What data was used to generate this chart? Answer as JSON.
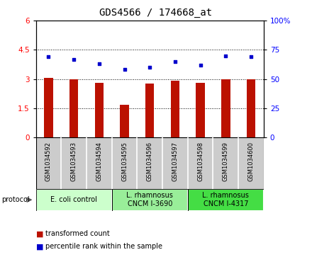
{
  "title": "GDS4566 / 174668_at",
  "samples": [
    "GSM1034592",
    "GSM1034593",
    "GSM1034594",
    "GSM1034595",
    "GSM1034596",
    "GSM1034597",
    "GSM1034598",
    "GSM1034599",
    "GSM1034600"
  ],
  "transformed_counts": [
    3.05,
    3.0,
    2.82,
    1.68,
    2.78,
    2.93,
    2.82,
    3.0,
    3.0
  ],
  "percentile_ranks": [
    69,
    67,
    63,
    58,
    60,
    65,
    62,
    70,
    69
  ],
  "left_ylim": [
    0,
    6
  ],
  "left_yticks": [
    0,
    1.5,
    3.0,
    4.5,
    6.0
  ],
  "left_yticklabels": [
    "0",
    "1.5",
    "3",
    "4.5",
    "6"
  ],
  "right_ylim": [
    0,
    100
  ],
  "right_yticks": [
    0,
    25,
    50,
    75,
    100
  ],
  "right_yticklabels": [
    "0",
    "25",
    "50",
    "75",
    "100%"
  ],
  "bar_color": "#bb1100",
  "dot_color": "#0000cc",
  "bar_width": 0.35,
  "dotted_lines": [
    1.5,
    3.0,
    4.5
  ],
  "groups": [
    {
      "label": "E. coli control",
      "indices": [
        0,
        1,
        2
      ],
      "color": "#ccffcc"
    },
    {
      "label": "L. rhamnosus\nCNCM I-3690",
      "indices": [
        3,
        4,
        5
      ],
      "color": "#99ee99"
    },
    {
      "label": "L. rhamnosus\nCNCM I-4317",
      "indices": [
        6,
        7,
        8
      ],
      "color": "#44dd44"
    }
  ],
  "sample_box_color": "#cccccc",
  "protocol_label": "protocol",
  "legend_items": [
    {
      "label": "transformed count",
      "color": "#bb1100"
    },
    {
      "label": "percentile rank within the sample",
      "color": "#0000cc"
    }
  ],
  "title_fontsize": 10,
  "axis_fontsize": 7.5,
  "sample_fontsize": 6,
  "group_fontsize": 7,
  "legend_fontsize": 7
}
